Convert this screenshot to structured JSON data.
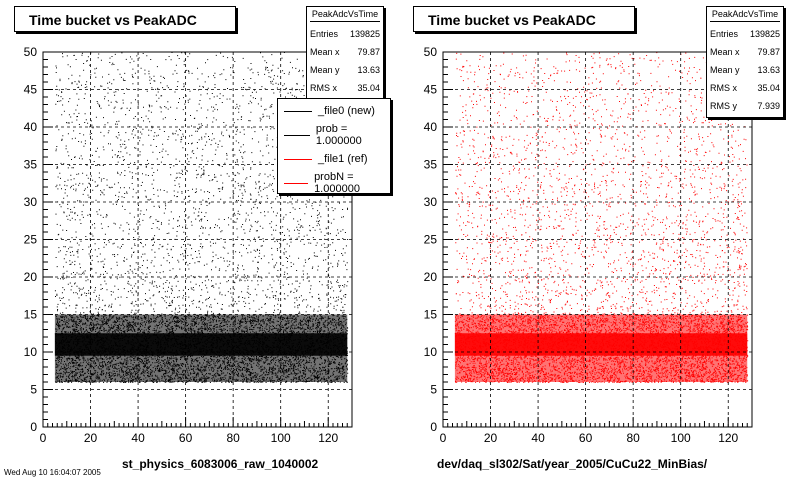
{
  "stamp": "Wed Aug 10 16:04:07 2005",
  "chart_data": [
    {
      "type": "scatter",
      "title": "Time bucket vs PeakADC",
      "xlabel": "st_physics_6083006_raw_1040002",
      "ylabel": "",
      "xlim": [
        0,
        130
      ],
      "ylim": [
        0,
        50
      ],
      "xticks": [
        0,
        20,
        40,
        60,
        80,
        100,
        120
      ],
      "yticks": [
        0,
        5,
        10,
        15,
        20,
        25,
        30,
        35,
        40,
        45,
        50
      ],
      "grid": true,
      "marker_color": "#000000",
      "band": {
        "x": [
          5,
          128
        ],
        "y_dense": [
          6,
          15
        ],
        "y_peak": 11
      },
      "stats": {
        "name": "PeakAdcVsTime",
        "rows": [
          {
            "label": "Entries",
            "value": "139825"
          },
          {
            "label": "Mean x",
            "value": "79.87"
          },
          {
            "label": "Mean y",
            "value": "13.63"
          },
          {
            "label": "RMS x",
            "value": "35.04"
          }
        ]
      },
      "legend": [
        {
          "label": "_file0 (new)",
          "color": "#000000"
        },
        {
          "label": "prob = 1.000000",
          "color": "#000000"
        },
        {
          "label": "_file1 (ref)",
          "color": "#ff0000"
        },
        {
          "label": "probN = 1.000000",
          "color": "#ff0000"
        }
      ]
    },
    {
      "type": "scatter",
      "title": "Time bucket vs PeakADC",
      "xlabel": "dev/daq_sl302/Sat/year_2005/CuCu22_MinBias/",
      "ylabel": "",
      "xlim": [
        0,
        130
      ],
      "ylim": [
        0,
        50
      ],
      "xticks": [
        0,
        20,
        40,
        60,
        80,
        100,
        120
      ],
      "yticks": [
        0,
        5,
        10,
        15,
        20,
        25,
        30,
        35,
        40,
        45,
        50
      ],
      "grid": true,
      "marker_color": "#ff0000",
      "band": {
        "x": [
          5,
          128
        ],
        "y_dense": [
          6,
          15
        ],
        "y_peak": 11
      },
      "stats": {
        "name": "PeakAdcVsTime",
        "rows": [
          {
            "label": "Entries",
            "value": "139825"
          },
          {
            "label": "Mean x",
            "value": "79.87"
          },
          {
            "label": "Mean y",
            "value": "13.63"
          },
          {
            "label": "RMS x",
            "value": "35.04"
          },
          {
            "label": "RMS y",
            "value": "7.939"
          }
        ]
      }
    }
  ]
}
